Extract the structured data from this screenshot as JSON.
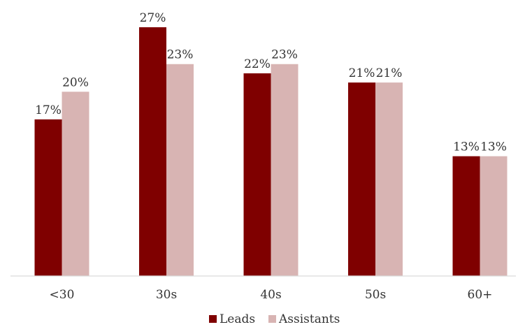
{
  "chart_data": {
    "type": "bar",
    "categories": [
      "<30",
      "30s",
      "40s",
      "50s",
      "60+"
    ],
    "series": [
      {
        "name": "Leads",
        "color": "#7f0000",
        "values": [
          17,
          27,
          22,
          21,
          13
        ],
        "labels": [
          "17%",
          "27%",
          "22%",
          "21%",
          "13%"
        ]
      },
      {
        "name": "Assistants",
        "color": "#d8b4b3",
        "values": [
          20,
          23,
          23,
          21,
          13
        ],
        "labels": [
          "20%",
          "23%",
          "23%",
          "21%",
          "13%"
        ]
      }
    ],
    "ylim": [
      0,
      27
    ],
    "grid": false,
    "legend": "bottom-center",
    "data_labels": true
  }
}
